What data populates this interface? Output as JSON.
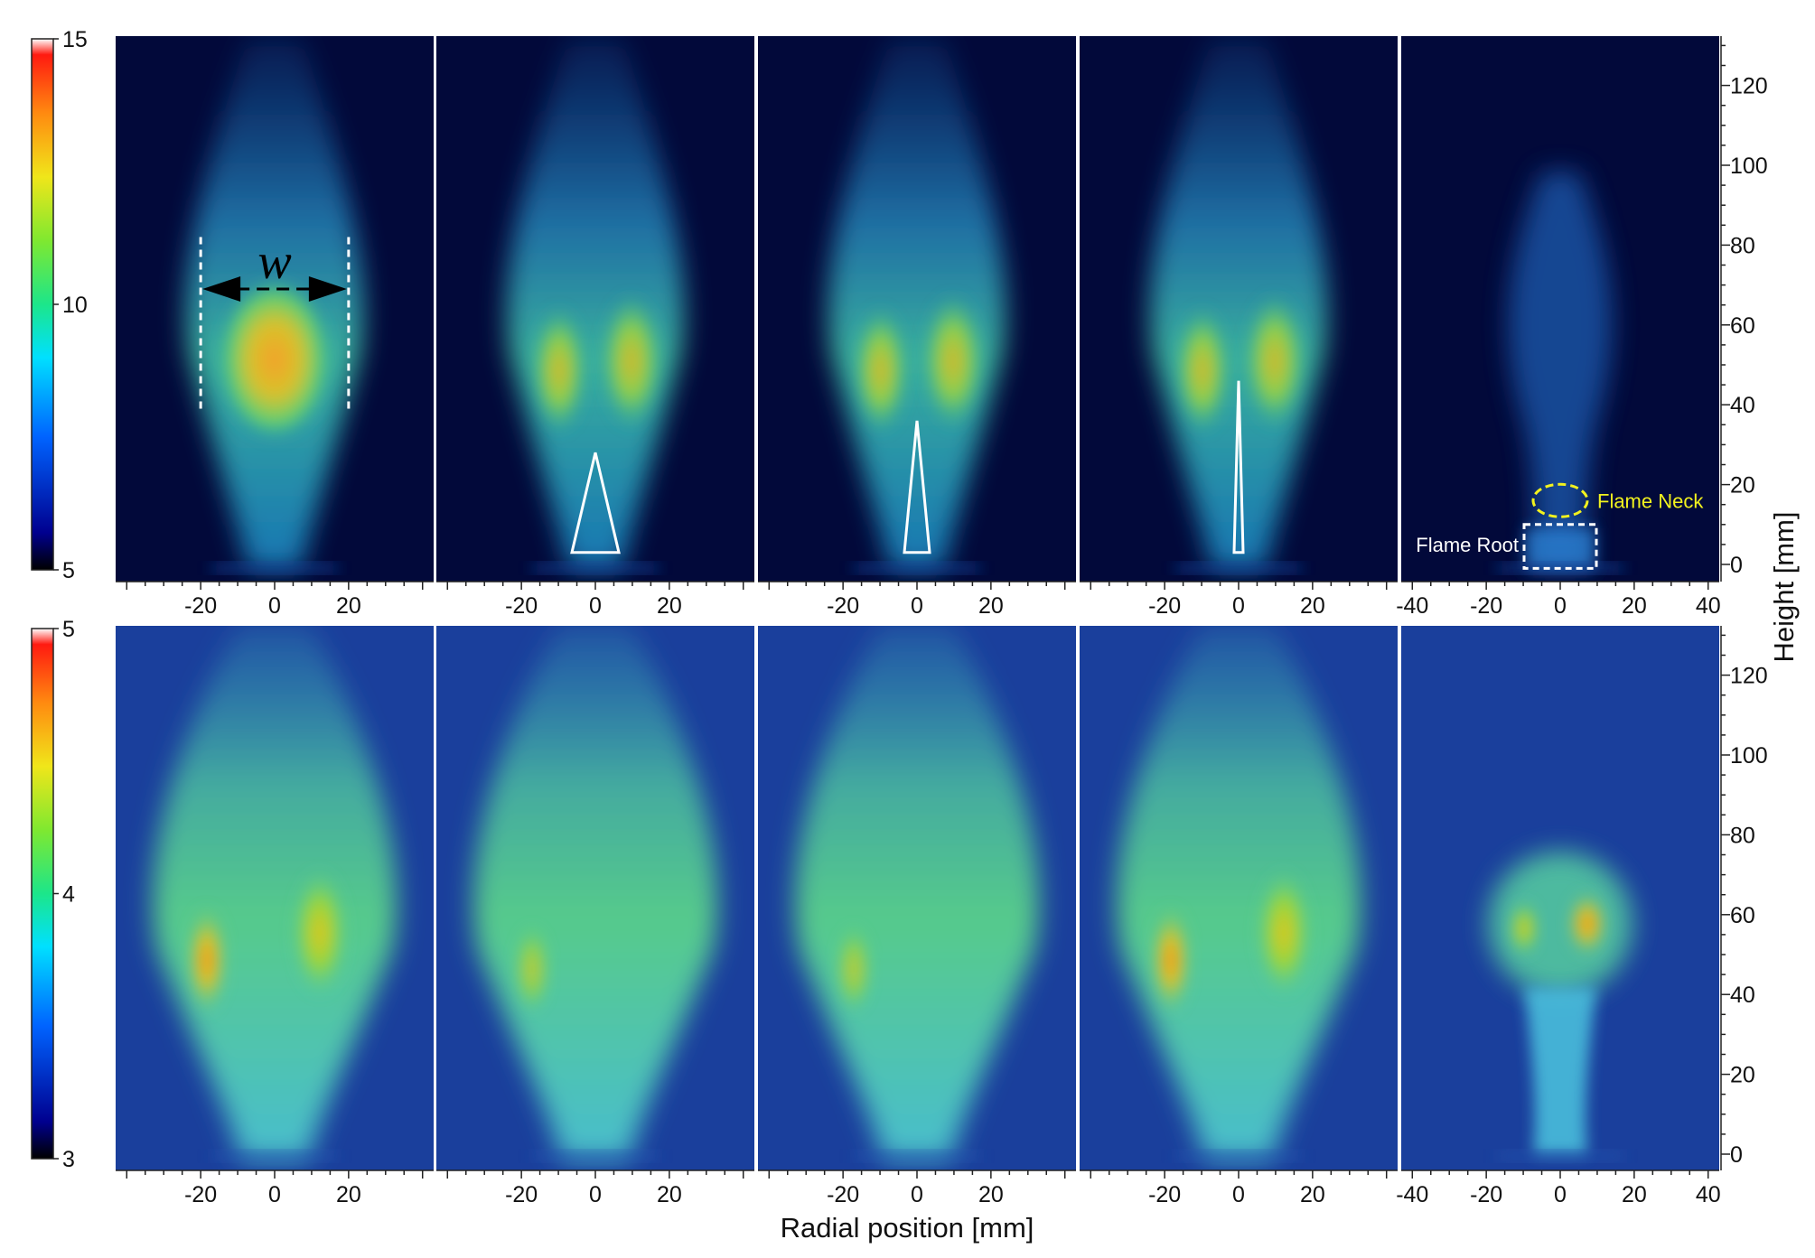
{
  "figure": {
    "x_axis_label": "Radial position [mm]",
    "y_axis_label": "Height [mm]",
    "annotations": {
      "width_symbol": "w",
      "flame_neck": "Flame Neck",
      "flame_root": "Flame Root"
    },
    "colors": {
      "background_low": "#02093a",
      "background_bottom_row": "#1a3f9c",
      "neck_marker": "#f2f21e",
      "root_marker": "#ffffff"
    }
  },
  "chart_data": [
    {
      "type": "heatmap",
      "row": "top",
      "colorbar": {
        "min": 5,
        "max": 15,
        "ticks": [
          "15",
          "10",
          "5"
        ]
      },
      "panels": [
        {
          "x_ticks": [
            "-20",
            "0",
            "20"
          ],
          "xlim": [
            -43,
            43
          ]
        },
        {
          "x_ticks": [
            "-20",
            "0",
            "20"
          ],
          "xlim": [
            -43,
            43
          ]
        },
        {
          "x_ticks": [
            "-20",
            "0",
            "20"
          ],
          "xlim": [
            -43,
            43
          ]
        },
        {
          "x_ticks": [
            "-20",
            "0",
            "20"
          ],
          "xlim": [
            -43,
            43
          ]
        },
        {
          "x_ticks": [
            "-40",
            "-20",
            "0",
            "20",
            "40"
          ],
          "xlim": [
            -43,
            43
          ]
        }
      ],
      "y_ticks": [
        "120",
        "100",
        "80",
        "60",
        "40",
        "20",
        "0"
      ],
      "ylim": [
        -4,
        132
      ]
    },
    {
      "type": "heatmap",
      "row": "bottom",
      "colorbar": {
        "min": 3,
        "max": 5,
        "ticks": [
          "5",
          "4",
          "3"
        ]
      },
      "panels": [
        {
          "x_ticks": [
            "-20",
            "0",
            "20"
          ],
          "xlim": [
            -43,
            43
          ]
        },
        {
          "x_ticks": [
            "-20",
            "0",
            "20"
          ],
          "xlim": [
            -43,
            43
          ]
        },
        {
          "x_ticks": [
            "-20",
            "0",
            "20"
          ],
          "xlim": [
            -43,
            43
          ]
        },
        {
          "x_ticks": [
            "-20",
            "0",
            "20"
          ],
          "xlim": [
            -43,
            43
          ]
        },
        {
          "x_ticks": [
            "-40",
            "-20",
            "0",
            "20",
            "40"
          ],
          "xlim": [
            -43,
            43
          ]
        }
      ],
      "y_ticks": [
        "120",
        "100",
        "80",
        "60",
        "40",
        "20",
        "0"
      ],
      "ylim": [
        -4,
        132
      ]
    }
  ]
}
